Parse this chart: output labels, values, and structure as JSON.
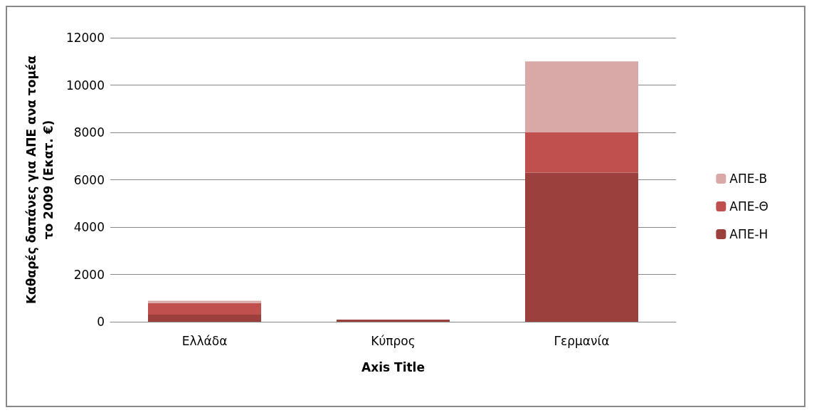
{
  "chart_data": {
    "type": "bar",
    "stacked": true,
    "xlabel": "Axis Title",
    "ylabel": "Καθαρές δαπάνες για ΑΠΕ ανα τομέα\nτο 2009 (Εκατ. €)",
    "categories": [
      "Ελλάδα",
      "Κύπρος",
      "Γερμανία"
    ],
    "series": [
      {
        "name": "ΑΠΕ-Η",
        "color": "#9c403e",
        "values": [
          300,
          90,
          6300
        ]
      },
      {
        "name": "ΑΠΕ-Θ",
        "color": "#c0504d",
        "values": [
          490,
          null,
          1700
        ]
      },
      {
        "name": "ΑΠΕ-Β",
        "color": "#d9a9a8",
        "values": [
          100,
          null,
          3000
        ]
      }
    ],
    "ylim": [
      0,
      12000
    ],
    "yticks": [
      0,
      2000,
      4000,
      6000,
      8000,
      10000,
      12000
    ],
    "grid": "y",
    "legend": "right"
  }
}
